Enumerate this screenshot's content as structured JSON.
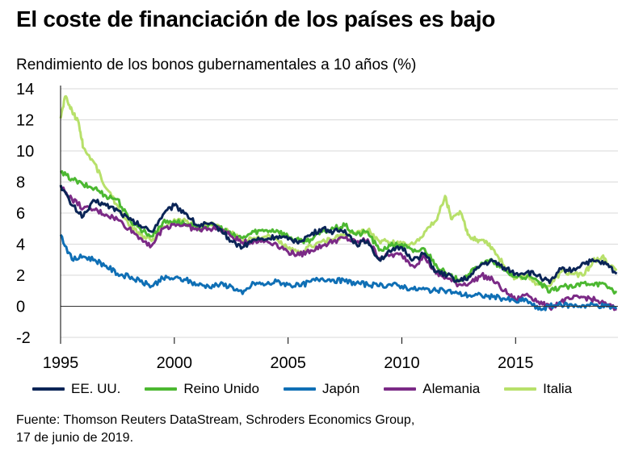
{
  "title": "El coste de financiación de los países es bajo",
  "source": {
    "line1": "Fuente: Thomson Reuters DataStream, Schroders Economics Group,",
    "line2": "17 de junio de 2019."
  },
  "chart_data": {
    "type": "line",
    "title": "El coste de financiación de los países es bajo",
    "ylabel": "Rendimiento de los bonos gubernamentales a 10 años (%)",
    "xlabel": "",
    "xlim": [
      1995,
      2019.5
    ],
    "ylim": [
      -2,
      14
    ],
    "yticks": [
      -2,
      0,
      2,
      4,
      6,
      8,
      10,
      12,
      14
    ],
    "xticks": [
      1995,
      2000,
      2005,
      2010,
      2015
    ],
    "grid": "horizontal",
    "legend": "bottom",
    "series": [
      {
        "name": "EE. UU.",
        "color": "#0a2456",
        "x": [
          1995,
          1995.5,
          1996,
          1996.5,
          1997,
          1997.5,
          1998,
          1998.5,
          1999,
          1999.5,
          2000,
          2000.5,
          2001,
          2001.5,
          2002,
          2002.5,
          2003,
          2003.5,
          2004,
          2004.5,
          2005,
          2005.5,
          2006,
          2006.5,
          2007,
          2007.5,
          2008,
          2008.5,
          2009,
          2009.5,
          2010,
          2010.5,
          2011,
          2011.5,
          2012,
          2012.5,
          2013,
          2013.5,
          2014,
          2014.5,
          2015,
          2015.5,
          2016,
          2016.5,
          2017,
          2017.5,
          2018,
          2018.5,
          2019,
          2019.45
        ],
        "y": [
          7.8,
          6.5,
          5.8,
          6.8,
          6.5,
          6.2,
          5.6,
          5.2,
          4.8,
          5.9,
          6.5,
          6.0,
          5.2,
          5.3,
          5.0,
          4.2,
          3.8,
          4.3,
          4.3,
          4.5,
          4.3,
          4.2,
          4.6,
          5.0,
          4.8,
          4.9,
          4.0,
          4.2,
          3.0,
          3.5,
          3.8,
          3.0,
          3.4,
          2.2,
          2.0,
          1.6,
          1.9,
          2.7,
          2.9,
          2.5,
          2.1,
          2.2,
          2.0,
          1.5,
          2.4,
          2.3,
          2.8,
          2.9,
          2.7,
          2.1
        ]
      },
      {
        "name": "Reino Unido",
        "color": "#4cb831",
        "x": [
          1995,
          1995.5,
          1996,
          1996.5,
          1997,
          1997.5,
          1998,
          1998.5,
          1999,
          1999.5,
          2000,
          2000.5,
          2001,
          2001.5,
          2002,
          2002.5,
          2003,
          2003.5,
          2004,
          2004.5,
          2005,
          2005.5,
          2006,
          2006.5,
          2007,
          2007.5,
          2008,
          2008.5,
          2009,
          2009.5,
          2010,
          2010.5,
          2011,
          2011.5,
          2012,
          2012.5,
          2013,
          2013.5,
          2014,
          2014.5,
          2015,
          2015.5,
          2016,
          2016.5,
          2017,
          2017.5,
          2018,
          2018.5,
          2019,
          2019.45
        ],
        "y": [
          8.6,
          8.2,
          7.8,
          7.6,
          7.1,
          6.9,
          5.6,
          5.0,
          4.5,
          5.4,
          5.5,
          5.3,
          5.0,
          5.2,
          5.1,
          4.6,
          4.4,
          4.8,
          4.9,
          4.9,
          4.5,
          4.2,
          4.3,
          4.8,
          5.0,
          5.2,
          4.6,
          4.8,
          3.6,
          3.9,
          4.0,
          3.5,
          3.7,
          2.7,
          2.0,
          1.7,
          2.1,
          2.8,
          2.9,
          2.3,
          1.9,
          1.9,
          1.6,
          0.9,
          1.3,
          1.2,
          1.5,
          1.5,
          1.3,
          0.9
        ]
      },
      {
        "name": "Japón",
        "color": "#0f6fb5",
        "x": [
          1995,
          1995.5,
          1996,
          1996.5,
          1997,
          1997.5,
          1998,
          1998.5,
          1999,
          1999.5,
          2000,
          2000.5,
          2001,
          2001.5,
          2002,
          2002.5,
          2003,
          2003.5,
          2004,
          2004.5,
          2005,
          2005.5,
          2006,
          2006.5,
          2007,
          2007.5,
          2008,
          2008.5,
          2009,
          2009.5,
          2010,
          2010.5,
          2011,
          2011.5,
          2012,
          2012.5,
          2013,
          2013.5,
          2014,
          2014.5,
          2015,
          2015.5,
          2016,
          2016.5,
          2017,
          2017.5,
          2018,
          2018.5,
          2019,
          2019.45
        ],
        "y": [
          4.6,
          3.0,
          3.2,
          3.0,
          2.6,
          2.1,
          1.9,
          1.6,
          1.3,
          1.8,
          1.8,
          1.7,
          1.4,
          1.3,
          1.4,
          1.3,
          0.8,
          1.5,
          1.4,
          1.6,
          1.4,
          1.3,
          1.6,
          1.8,
          1.7,
          1.6,
          1.5,
          1.4,
          1.3,
          1.4,
          1.3,
          1.1,
          1.1,
          1.0,
          1.0,
          0.8,
          0.7,
          0.7,
          0.6,
          0.5,
          0.3,
          0.4,
          -0.2,
          0.0,
          0.1,
          0.05,
          0.05,
          0.1,
          0.0,
          -0.1
        ]
      },
      {
        "name": "Alemania",
        "color": "#7b2a86",
        "x": [
          1995,
          1995.5,
          1996,
          1996.5,
          1997,
          1997.5,
          1998,
          1998.5,
          1999,
          1999.5,
          2000,
          2000.5,
          2001,
          2001.5,
          2002,
          2002.5,
          2003,
          2003.5,
          2004,
          2004.5,
          2005,
          2005.5,
          2006,
          2006.5,
          2007,
          2007.5,
          2008,
          2008.5,
          2009,
          2009.5,
          2010,
          2010.5,
          2011,
          2011.5,
          2012,
          2012.5,
          2013,
          2013.5,
          2014,
          2014.5,
          2015,
          2015.5,
          2016,
          2016.5,
          2017,
          2017.5,
          2018,
          2018.5,
          2019,
          2019.45
        ],
        "y": [
          7.7,
          6.9,
          6.3,
          6.2,
          5.9,
          5.6,
          5.0,
          4.4,
          3.9,
          5.0,
          5.3,
          5.2,
          4.9,
          5.0,
          5.0,
          4.5,
          4.1,
          4.2,
          4.2,
          4.0,
          3.5,
          3.3,
          3.6,
          3.9,
          4.2,
          4.4,
          4.1,
          4.3,
          3.1,
          3.3,
          3.3,
          2.6,
          3.2,
          2.1,
          1.8,
          1.4,
          1.5,
          2.0,
          1.7,
          1.0,
          0.4,
          0.8,
          0.3,
          -0.1,
          0.3,
          0.5,
          0.6,
          0.4,
          0.1,
          -0.2
        ]
      },
      {
        "name": "Italia",
        "color": "#b7e06a",
        "x": [
          1995,
          1995.2,
          1995.5,
          1995.8,
          1996,
          1996.5,
          1997,
          1997.5,
          1998,
          1998.5,
          1999,
          1999.5,
          2000,
          2000.5,
          2001,
          2001.5,
          2002,
          2002.5,
          2003,
          2003.5,
          2004,
          2004.5,
          2005,
          2005.5,
          2006,
          2006.5,
          2007,
          2007.5,
          2008,
          2008.5,
          2009,
          2009.5,
          2010,
          2010.5,
          2011,
          2011.5,
          2011.9,
          2012.2,
          2012.6,
          2012.9,
          2013.3,
          2013.7,
          2014,
          2014.5,
          2015,
          2015.5,
          2016,
          2016.5,
          2017,
          2017.5,
          2018,
          2018.4,
          2018.8,
          2019,
          2019.45
        ],
        "y": [
          12.1,
          13.5,
          12.6,
          11.8,
          10.2,
          9.2,
          7.6,
          6.5,
          5.2,
          4.6,
          4.2,
          5.1,
          5.6,
          5.5,
          5.2,
          5.3,
          5.1,
          4.7,
          4.2,
          4.4,
          4.5,
          4.3,
          3.7,
          3.4,
          3.9,
          4.2,
          4.3,
          4.6,
          4.7,
          4.9,
          4.2,
          4.1,
          4.0,
          4.0,
          4.8,
          5.5,
          7.1,
          5.6,
          6.0,
          4.6,
          4.3,
          4.2,
          3.7,
          2.6,
          1.8,
          2.0,
          1.4,
          1.3,
          2.2,
          2.1,
          2.0,
          2.9,
          3.2,
          2.8,
          2.4
        ]
      }
    ]
  }
}
